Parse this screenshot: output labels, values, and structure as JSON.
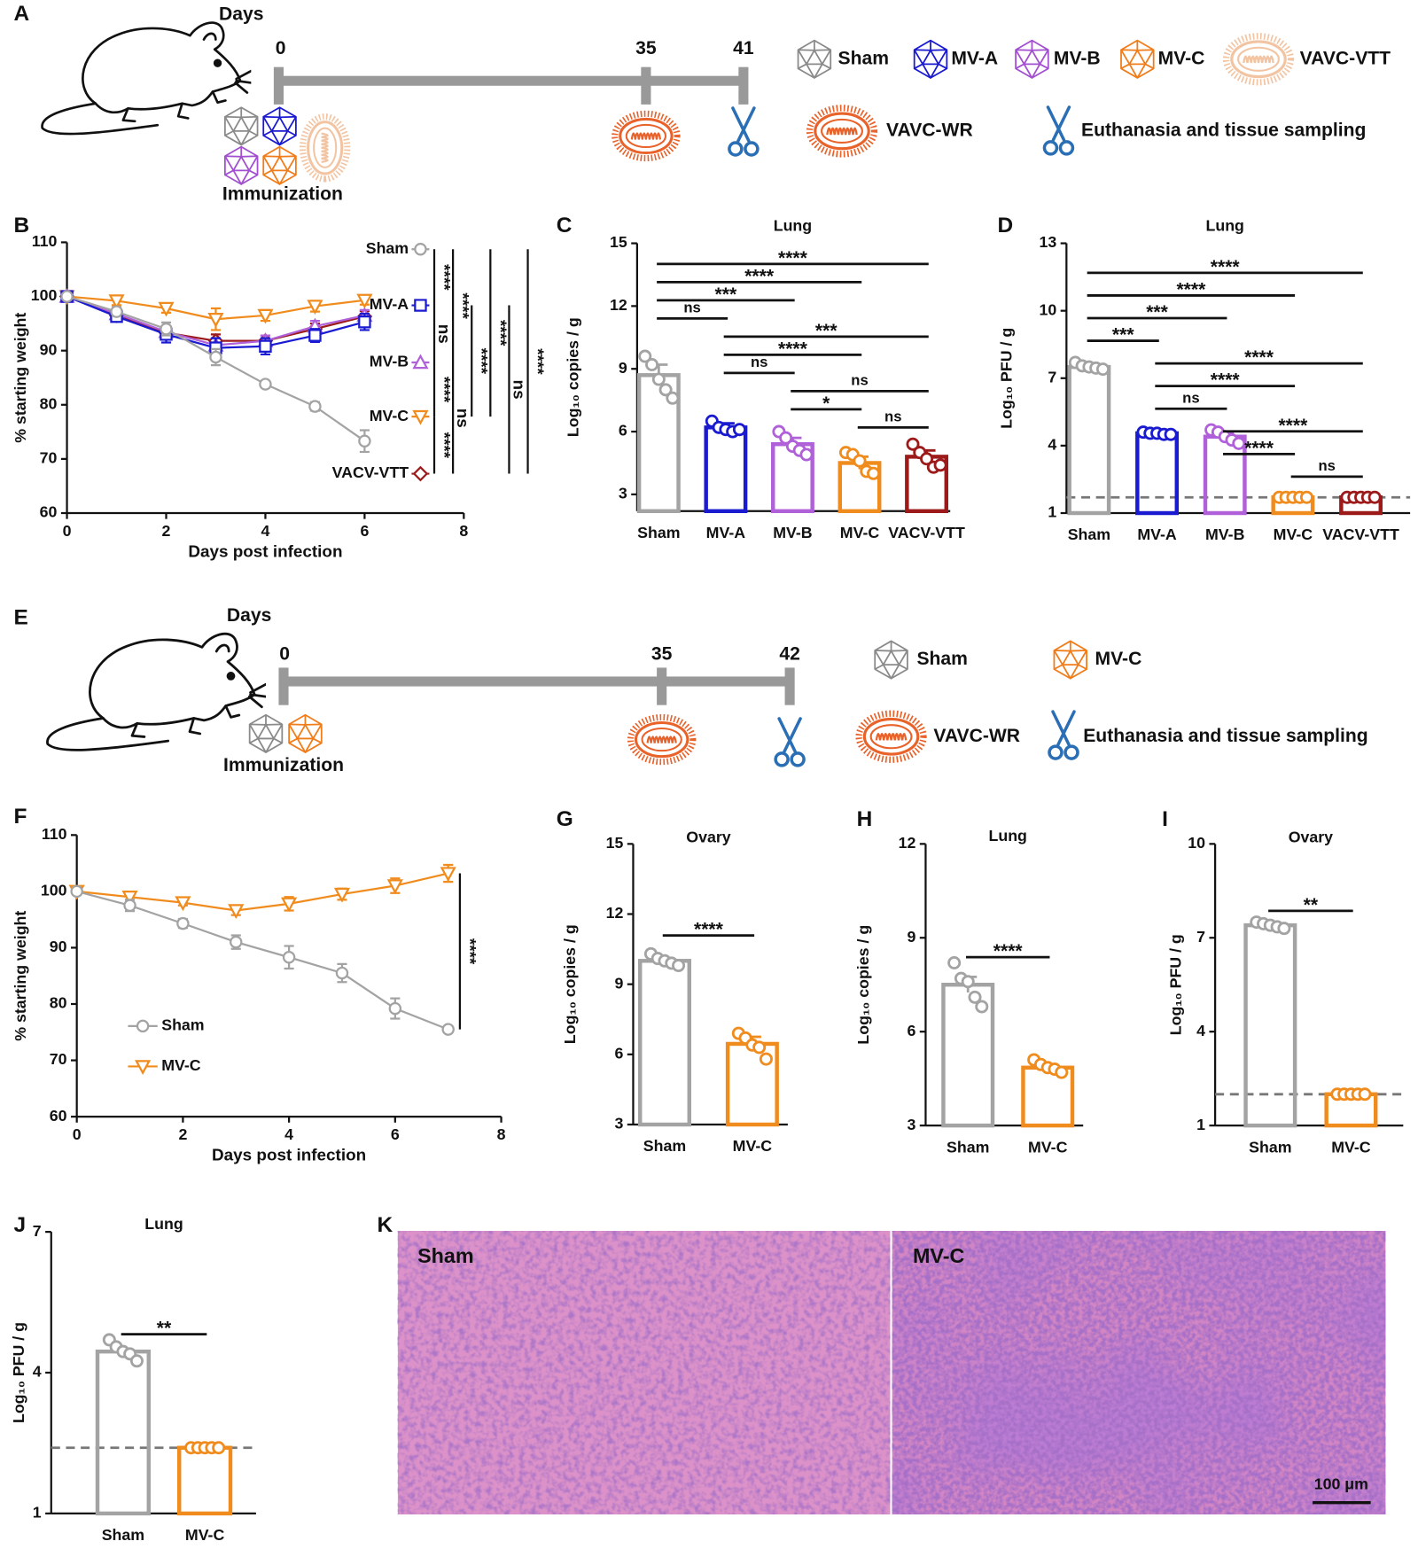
{
  "schematic_a": {
    "panel": "A",
    "days_label": "Days",
    "days": [
      "0",
      "35",
      "41"
    ],
    "immunization": "Immunization",
    "legend": [
      "Sham",
      "MV-A",
      "MV-B",
      "MV-C",
      "VAVC-VTT"
    ],
    "challenge": "VAVC-WR",
    "sampling": "Euthanasia and tissue sampling"
  },
  "schematic_e": {
    "panel": "E",
    "days_label": "Days",
    "days": [
      "0",
      "35",
      "42"
    ],
    "immunization": "Immunization",
    "legend": [
      "Sham",
      "MV-C"
    ],
    "challenge": "VAVC-WR",
    "sampling": "Euthanasia and tissue sampling"
  },
  "histology": {
    "panel": "K",
    "images": [
      "Sham",
      "MV-C"
    ],
    "scale_bar": "100 μm"
  },
  "chart_data": [
    {
      "panel": "B",
      "type": "line",
      "x_label": "Days post infection",
      "y_label": "% starting weight",
      "x": [
        0,
        1,
        2,
        3,
        4,
        5,
        6
      ],
      "xlim": [
        0,
        8
      ],
      "xticks": [
        0,
        2,
        4,
        6,
        8
      ],
      "ylim": [
        60,
        110
      ],
      "yticks": [
        60,
        70,
        80,
        90,
        100,
        110
      ],
      "legend": "right",
      "series": [
        {
          "name": "Sham",
          "color": "#a3a3a3",
          "marker": "circle",
          "values": [
            100,
            97.2,
            94,
            88.8,
            83.8,
            79.7,
            73.3
          ],
          "errors": [
            0.5,
            0.8,
            1.2,
            1.5,
            0.6,
            0.8,
            2
          ]
        },
        {
          "name": "MV-A",
          "color": "#1a1ad0",
          "marker": "square",
          "values": [
            100,
            96.3,
            93,
            90.5,
            90.8,
            92.8,
            95.3
          ],
          "errors": [
            0.5,
            0.8,
            1.5,
            1.8,
            1.5,
            1.2,
            1.5
          ]
        },
        {
          "name": "MV-B",
          "color": "#b060d8",
          "marker": "triangle-up",
          "values": [
            100,
            96.8,
            93.5,
            91,
            91.8,
            94.5,
            96.5
          ],
          "errors": [
            0.5,
            0.6,
            1,
            1.3,
            1,
            1,
            1
          ]
        },
        {
          "name": "MV-C",
          "color": "#f08c1e",
          "marker": "triangle-down",
          "values": [
            100,
            99.2,
            97.8,
            95.8,
            96.5,
            98.2,
            99.3
          ],
          "errors": [
            0.4,
            0.8,
            0.8,
            2,
            1,
            1,
            0.8
          ]
        },
        {
          "name": "VACV-VTT",
          "color": "#9c1a1a",
          "marker": "diamond",
          "values": [
            100,
            96.5,
            93.3,
            91.8,
            91.8,
            94,
            96.3
          ],
          "errors": [
            0.5,
            0.6,
            1,
            1.2,
            1,
            1,
            1
          ]
        }
      ],
      "comparisons": [
        {
          "from": "Sham",
          "to": "MV-A",
          "label": "****"
        },
        {
          "from": "MV-A",
          "to": "MV-B",
          "label": "ns"
        },
        {
          "from": "MV-B",
          "to": "MV-C",
          "label": "****"
        },
        {
          "from": "MV-C",
          "to": "VACV-VTT",
          "label": "****"
        },
        {
          "from": "Sham",
          "to": "MV-B",
          "label": "****"
        },
        {
          "from": "MV-A",
          "to": "MV-C",
          "label": "****"
        },
        {
          "from": "MV-B",
          "to": "VACV-VTT",
          "label": "ns"
        },
        {
          "from": "Sham",
          "to": "MV-C",
          "label": "****"
        },
        {
          "from": "MV-A",
          "to": "VACV-VTT",
          "label": "ns"
        },
        {
          "from": "Sham",
          "to": "VACV-VTT",
          "label": "****"
        }
      ]
    },
    {
      "panel": "C",
      "type": "bar",
      "title": "Lung",
      "y_label": "Log₁₀ copies / g",
      "categories": [
        "Sham",
        "MV-A",
        "MV-B",
        "MV-C",
        "VACV-VTT"
      ],
      "colors": [
        "#a3a3a3",
        "#1a1ad0",
        "#b060d8",
        "#f08c1e",
        "#9c1a1a"
      ],
      "values": [
        8.7,
        6.2,
        5.4,
        4.5,
        4.8
      ],
      "errors": [
        0.5,
        0.2,
        0.3,
        0.3,
        0.3
      ],
      "points": [
        [
          9.6,
          9.2,
          8.5,
          8.0,
          7.6
        ],
        [
          6.5,
          6.2,
          6.1,
          6.0,
          6.1
        ],
        [
          6.0,
          5.7,
          5.3,
          5.1,
          4.9
        ],
        [
          5.0,
          4.9,
          4.6,
          4.1,
          4.0
        ],
        [
          5.4,
          5.0,
          4.7,
          4.3,
          4.4
        ]
      ],
      "ylim": [
        2.2,
        15
      ],
      "yticks": [
        3,
        6,
        9,
        12,
        15
      ],
      "comparisons": [
        {
          "from": "Sham",
          "to": "VACV-VTT",
          "label": "****"
        },
        {
          "from": "Sham",
          "to": "MV-C",
          "label": "****"
        },
        {
          "from": "Sham",
          "to": "MV-B",
          "label": "***"
        },
        {
          "from": "Sham",
          "to": "MV-A",
          "label": "ns"
        },
        {
          "from": "MV-A",
          "to": "VACV-VTT",
          "label": "***"
        },
        {
          "from": "MV-A",
          "to": "MV-C",
          "label": "****"
        },
        {
          "from": "MV-A",
          "to": "MV-B",
          "label": "ns"
        },
        {
          "from": "MV-B",
          "to": "VACV-VTT",
          "label": "ns"
        },
        {
          "from": "MV-B",
          "to": "MV-C",
          "label": "*"
        },
        {
          "from": "MV-C",
          "to": "VACV-VTT",
          "label": "ns"
        }
      ]
    },
    {
      "panel": "D",
      "type": "bar",
      "title": "Lung",
      "y_label": "Log₁₀ PFU / g",
      "categories": [
        "Sham",
        "MV-A",
        "MV-B",
        "MV-C",
        "VACV-VTT"
      ],
      "colors": [
        "#a3a3a3",
        "#1a1ad0",
        "#b060d8",
        "#f08c1e",
        "#9c1a1a"
      ],
      "values": [
        7.5,
        4.55,
        4.4,
        1.7,
        1.7
      ],
      "errors": [
        0.1,
        0.05,
        0.15,
        0,
        0
      ],
      "points": [
        [
          7.7,
          7.55,
          7.5,
          7.45,
          7.4
        ],
        [
          4.6,
          4.55,
          4.55,
          4.5,
          4.5
        ],
        [
          4.7,
          4.6,
          4.4,
          4.25,
          4.1
        ],
        [
          1.7,
          1.7,
          1.7,
          1.7,
          1.7
        ],
        [
          1.7,
          1.7,
          1.7,
          1.7,
          1.7
        ]
      ],
      "ylim": [
        1,
        13
      ],
      "yticks": [
        1,
        4,
        7,
        10,
        13
      ],
      "lod": 1.7,
      "comparisons": [
        {
          "from": "Sham",
          "to": "VACV-VTT",
          "label": "****"
        },
        {
          "from": "Sham",
          "to": "MV-C",
          "label": "****"
        },
        {
          "from": "Sham",
          "to": "MV-B",
          "label": "***"
        },
        {
          "from": "Sham",
          "to": "MV-A",
          "label": "***"
        },
        {
          "from": "MV-A",
          "to": "VACV-VTT",
          "label": "****"
        },
        {
          "from": "MV-A",
          "to": "MV-C",
          "label": "****"
        },
        {
          "from": "MV-A",
          "to": "MV-B",
          "label": "ns"
        },
        {
          "from": "MV-B",
          "to": "VACV-VTT",
          "label": "****"
        },
        {
          "from": "MV-B",
          "to": "MV-C",
          "label": "****"
        },
        {
          "from": "MV-C",
          "to": "VACV-VTT",
          "label": "ns"
        }
      ]
    },
    {
      "panel": "F",
      "type": "line",
      "x_label": "Days post infection",
      "y_label": "% starting weight",
      "x": [
        0,
        1,
        2,
        3,
        4,
        5,
        6,
        7
      ],
      "xlim": [
        0,
        8
      ],
      "xticks": [
        0,
        2,
        4,
        6,
        8
      ],
      "ylim": [
        60,
        110
      ],
      "yticks": [
        60,
        70,
        80,
        90,
        100,
        110
      ],
      "legend": "lower left",
      "series": [
        {
          "name": "Sham",
          "color": "#a3a3a3",
          "marker": "circle",
          "values": [
            100,
            97.5,
            94.3,
            91,
            88.3,
            85.5,
            79.2,
            75.5
          ],
          "errors": [
            0.3,
            1,
            0.8,
            1.2,
            2,
            1.6,
            1.8,
            0.5
          ]
        },
        {
          "name": "MV-C",
          "color": "#f08c1e",
          "marker": "triangle-down",
          "values": [
            100,
            99,
            98,
            96.6,
            97.8,
            99.5,
            101,
            103.2
          ],
          "errors": [
            0.3,
            0.5,
            0.5,
            0.8,
            1.2,
            1,
            1.3,
            1.5
          ]
        }
      ],
      "comparisons": [
        {
          "from": "Sham",
          "to": "MV-C",
          "label": "****"
        }
      ]
    },
    {
      "panel": "G",
      "type": "bar",
      "title": "Ovary",
      "y_label": "Log₁₀ copies / g",
      "categories": [
        "Sham",
        "MV-C"
      ],
      "colors": [
        "#a3a3a3",
        "#f08c1e"
      ],
      "values": [
        10.0,
        6.45
      ],
      "errors": [
        0.1,
        0.3
      ],
      "points": [
        [
          10.3,
          10.1,
          10.0,
          9.9,
          9.8
        ],
        [
          6.9,
          6.7,
          6.4,
          6.3,
          5.8
        ]
      ],
      "ylim": [
        3,
        15
      ],
      "yticks": [
        3,
        6,
        9,
        12,
        15
      ],
      "comparisons": [
        {
          "from": "Sham",
          "to": "MV-C",
          "label": "****"
        }
      ]
    },
    {
      "panel": "H",
      "type": "bar",
      "title": "Lung",
      "y_label": "Log₁₀ copies / g",
      "categories": [
        "Sham",
        "MV-C"
      ],
      "colors": [
        "#a3a3a3",
        "#f08c1e"
      ],
      "values": [
        7.5,
        4.85
      ],
      "errors": [
        0.25,
        0.1
      ],
      "points": [
        [
          8.2,
          7.7,
          7.6,
          7.1,
          6.8
        ],
        [
          5.1,
          4.95,
          4.85,
          4.8,
          4.7
        ]
      ],
      "ylim": [
        3,
        12
      ],
      "yticks": [
        3,
        6,
        9,
        12
      ],
      "comparisons": [
        {
          "from": "Sham",
          "to": "MV-C",
          "label": "****"
        }
      ]
    },
    {
      "panel": "I",
      "type": "bar",
      "title": "Ovary",
      "y_label": "Log₁₀ PFU / g",
      "categories": [
        "Sham",
        "MV-C"
      ],
      "colors": [
        "#a3a3a3",
        "#f08c1e"
      ],
      "values": [
        7.4,
        2.0
      ],
      "errors": [
        0.05,
        0
      ],
      "points": [
        [
          7.5,
          7.45,
          7.4,
          7.35,
          7.3
        ],
        [
          2.0,
          2.0,
          2.0,
          2.0,
          2.0
        ]
      ],
      "ylim": [
        1,
        10
      ],
      "yticks": [
        1,
        4,
        7,
        10
      ],
      "lod": 2.0,
      "comparisons": [
        {
          "from": "Sham",
          "to": "MV-C",
          "label": "**"
        }
      ]
    },
    {
      "panel": "J",
      "type": "bar",
      "title": "Lung",
      "y_label": "Log₁₀ PFU / g",
      "categories": [
        "Sham",
        "MV-C"
      ],
      "colors": [
        "#a3a3a3",
        "#f08c1e"
      ],
      "values": [
        4.45,
        2.4
      ],
      "errors": [
        0.05,
        0
      ],
      "points": [
        [
          4.7,
          4.55,
          4.45,
          4.4,
          4.25
        ],
        [
          2.4,
          2.4,
          2.4,
          2.4,
          2.4
        ]
      ],
      "ylim": [
        1,
        7
      ],
      "yticks": [
        1,
        4,
        7
      ],
      "lod": 2.4,
      "comparisons": [
        {
          "from": "Sham",
          "to": "MV-C",
          "label": "**"
        }
      ]
    }
  ]
}
